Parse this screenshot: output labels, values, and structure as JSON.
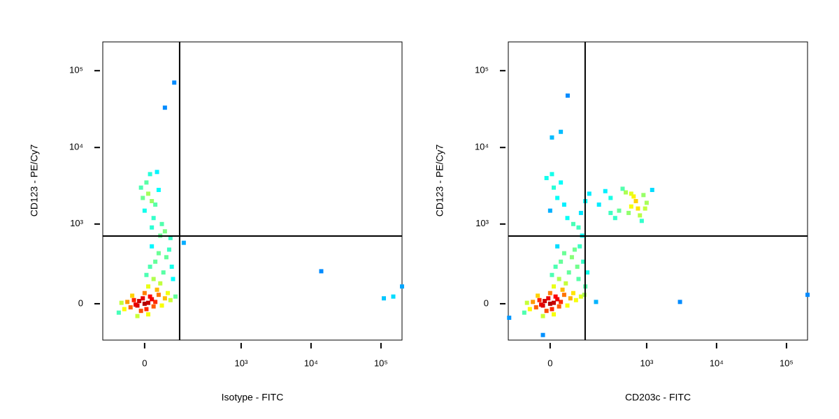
{
  "chart_data": [
    {
      "type": "scatter",
      "xlabel": "Isotype - FITC",
      "ylabel": "CD123 - PE/Cy7",
      "xscale": "asinh",
      "xscale_cofactor": 83.5,
      "yscale": "asinh",
      "yscale_cofactor": 185,
      "xlim": [
        -155,
        200000
      ],
      "ylim": [
        -244,
        237000
      ],
      "xticks": [
        0,
        {
          "value": 1000,
          "label": "10³"
        },
        {
          "value": 10000,
          "label": "10⁴"
        },
        {
          "value": 100000,
          "label": "10⁵"
        }
      ],
      "yticks": [
        0,
        {
          "value": 1000,
          "label": "10³"
        },
        {
          "value": 10000,
          "label": "10⁴"
        },
        {
          "value": 100000,
          "label": "10⁵"
        }
      ],
      "gate_x": 119,
      "gate_y": 692,
      "x": [
        -20,
        0,
        10,
        -30,
        25,
        -5,
        15,
        -40,
        30,
        5,
        -15,
        20,
        -25,
        40,
        -50,
        0,
        50,
        -10,
        35,
        60,
        -60,
        10,
        70,
        -35,
        45,
        25,
        80,
        -70,
        55,
        15,
        30,
        65,
        5,
        40,
        75,
        20,
        90,
        100,
        -80,
        -20,
        10,
        85,
        0,
        10,
        20,
        -10,
        30,
        5,
        15,
        25,
        -5,
        40,
        35,
        50,
        60,
        45,
        20,
        80,
        95,
        60,
        140,
        14000,
        110000,
        150000,
        200000
      ],
      "y": [
        -10,
        0,
        5,
        20,
        -15,
        30,
        40,
        -20,
        10,
        -30,
        15,
        25,
        -5,
        50,
        10,
        60,
        -10,
        -40,
        80,
        30,
        -30,
        100,
        60,
        45,
        120,
        150,
        20,
        5,
        200,
        250,
        300,
        350,
        180,
        400,
        450,
        500,
        150,
        40,
        -50,
        -70,
        -60,
        250,
        1500,
        2500,
        2000,
        3000,
        1800,
        3500,
        4500,
        1200,
        2200,
        2800,
        4800,
        1000,
        800,
        700,
        900,
        650,
        70000,
        33000,
        560,
        210,
        30,
        40,
        100
      ]
    },
    {
      "type": "scatter",
      "xlabel": "CD203c - FITC",
      "ylabel": "CD123 - PE/Cy7",
      "xscale": "asinh",
      "xscale_cofactor": 83.5,
      "yscale": "asinh",
      "yscale_cofactor": 185,
      "xlim": [
        -155,
        200000
      ],
      "ylim": [
        -244,
        237000
      ],
      "xticks": [
        0,
        {
          "value": 1000,
          "label": "10³"
        },
        {
          "value": 10000,
          "label": "10⁴"
        },
        {
          "value": 100000,
          "label": "10⁵"
        }
      ],
      "yticks": [
        0,
        {
          "value": 1000,
          "label": "10³"
        },
        {
          "value": 10000,
          "label": "10⁴"
        },
        {
          "value": 100000,
          "label": "10⁵"
        }
      ],
      "gate_x": 119,
      "gate_y": 692,
      "x": [
        -20,
        0,
        10,
        -30,
        25,
        -5,
        15,
        -40,
        30,
        5,
        -15,
        20,
        -25,
        40,
        -50,
        0,
        50,
        -10,
        35,
        60,
        -60,
        10,
        70,
        -35,
        45,
        25,
        80,
        -70,
        55,
        15,
        30,
        65,
        5,
        40,
        75,
        20,
        90,
        100,
        -80,
        -20,
        10,
        85,
        110,
        120,
        95,
        105,
        130,
        115,
        0,
        10,
        -10,
        20,
        30,
        5,
        40,
        50,
        70,
        90,
        100,
        120,
        140,
        200,
        300,
        400,
        500,
        600,
        700,
        800,
        900,
        1000,
        350,
        450,
        550,
        650,
        750,
        250,
        1200,
        850,
        950,
        300,
        600,
        51,
        5,
        30,
        180,
        3000,
        200000,
        -20,
        -150
      ],
      "y": [
        -10,
        0,
        5,
        20,
        -15,
        30,
        40,
        -20,
        10,
        -30,
        15,
        25,
        -5,
        50,
        10,
        60,
        -10,
        -40,
        80,
        30,
        -30,
        100,
        60,
        45,
        120,
        150,
        20,
        5,
        200,
        250,
        300,
        350,
        180,
        400,
        450,
        500,
        150,
        40,
        -50,
        -70,
        -60,
        250,
        300,
        100,
        500,
        700,
        200,
        50,
        1500,
        3000,
        4000,
        2200,
        3500,
        4500,
        1800,
        1200,
        1000,
        900,
        1400,
        2000,
        2500,
        1800,
        2200,
        1500,
        2600,
        1700,
        2000,
        1300,
        2400,
        1900,
        1200,
        2900,
        1400,
        2300,
        1600,
        2700,
        2800,
        1100,
        1600,
        1400,
        2500,
        47400,
        13500,
        16000,
        10,
        10,
        50,
        -200,
        -80
      ]
    }
  ]
}
